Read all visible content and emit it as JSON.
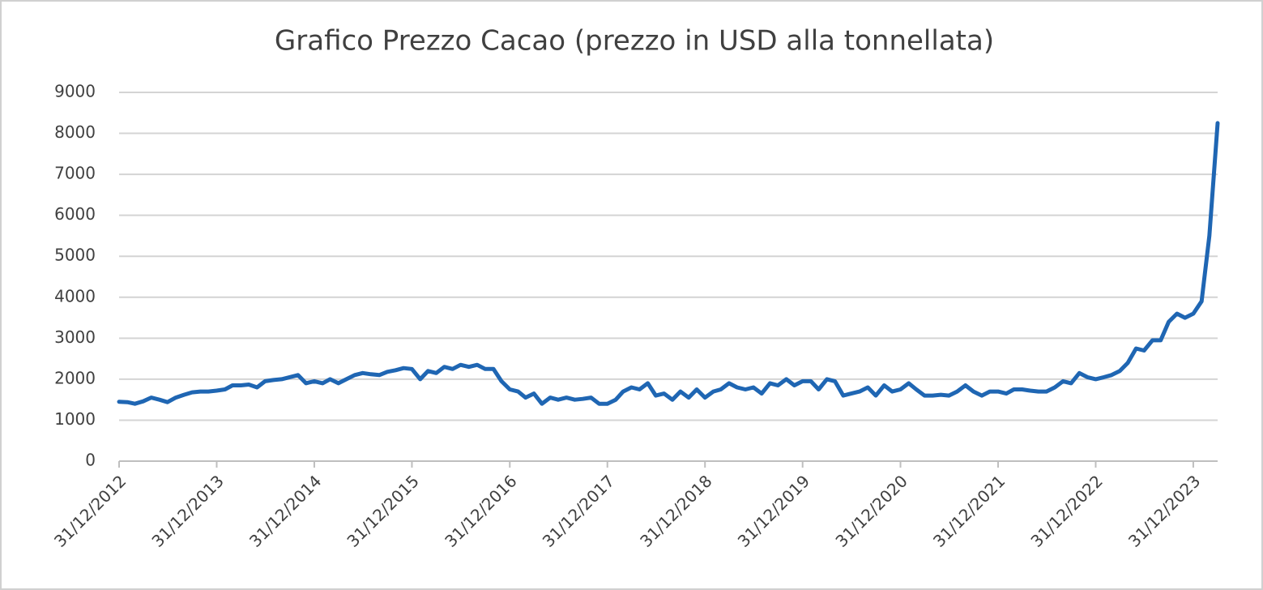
{
  "chart_data": {
    "type": "line",
    "title": "Grafico Prezzo Cacao (prezzo in USD alla tonnellata)",
    "color": "#1f66b3",
    "grid": true,
    "ylim": [
      0,
      9000
    ],
    "yticks": [
      0,
      1000,
      2000,
      3000,
      4000,
      5000,
      6000,
      7000,
      8000,
      9000
    ],
    "xlim": [
      "31/12/2012",
      "31/03/2024"
    ],
    "xticks": [
      "31/12/2012",
      "31/12/2013",
      "31/12/2014",
      "31/12/2015",
      "31/12/2016",
      "31/12/2017",
      "31/12/2018",
      "31/12/2019",
      "31/12/2020",
      "31/12/2021",
      "31/12/2022",
      "31/12/2023"
    ],
    "x": [
      "31/12/2012",
      "31/01/2013",
      "28/02/2013",
      "31/03/2013",
      "30/04/2013",
      "31/05/2013",
      "30/06/2013",
      "31/07/2013",
      "31/08/2013",
      "30/09/2013",
      "31/10/2013",
      "30/11/2013",
      "31/12/2013",
      "31/01/2014",
      "28/02/2014",
      "31/03/2014",
      "30/04/2014",
      "31/05/2014",
      "30/06/2014",
      "31/07/2014",
      "31/08/2014",
      "30/09/2014",
      "31/10/2014",
      "30/11/2014",
      "31/12/2014",
      "31/01/2015",
      "28/02/2015",
      "31/03/2015",
      "30/04/2015",
      "31/05/2015",
      "30/06/2015",
      "31/07/2015",
      "31/08/2015",
      "30/09/2015",
      "31/10/2015",
      "30/11/2015",
      "31/12/2015",
      "31/01/2016",
      "29/02/2016",
      "31/03/2016",
      "30/04/2016",
      "31/05/2016",
      "30/06/2016",
      "31/07/2016",
      "31/08/2016",
      "30/09/2016",
      "31/10/2016",
      "30/11/2016",
      "31/12/2016",
      "31/01/2017",
      "28/02/2017",
      "31/03/2017",
      "30/04/2017",
      "31/05/2017",
      "30/06/2017",
      "31/07/2017",
      "31/08/2017",
      "30/09/2017",
      "31/10/2017",
      "30/11/2017",
      "31/12/2017",
      "31/01/2018",
      "28/02/2018",
      "31/03/2018",
      "30/04/2018",
      "31/05/2018",
      "30/06/2018",
      "31/07/2018",
      "31/08/2018",
      "30/09/2018",
      "31/10/2018",
      "30/11/2018",
      "31/12/2018",
      "31/01/2019",
      "28/02/2019",
      "31/03/2019",
      "30/04/2019",
      "31/05/2019",
      "30/06/2019",
      "31/07/2019",
      "31/08/2019",
      "30/09/2019",
      "31/10/2019",
      "30/11/2019",
      "31/12/2019",
      "31/01/2020",
      "29/02/2020",
      "31/03/2020",
      "30/04/2020",
      "31/05/2020",
      "30/06/2020",
      "31/07/2020",
      "31/08/2020",
      "30/09/2020",
      "31/10/2020",
      "30/11/2020",
      "31/12/2020",
      "31/01/2021",
      "28/02/2021",
      "31/03/2021",
      "30/04/2021",
      "31/05/2021",
      "30/06/2021",
      "31/07/2021",
      "31/08/2021",
      "30/09/2021",
      "31/10/2021",
      "30/11/2021",
      "31/12/2021",
      "31/01/2022",
      "28/02/2022",
      "31/03/2022",
      "30/04/2022",
      "31/05/2022",
      "30/06/2022",
      "31/07/2022",
      "31/08/2022",
      "30/09/2022",
      "31/10/2022",
      "30/11/2022",
      "31/12/2022",
      "31/01/2023",
      "28/02/2023",
      "31/03/2023",
      "30/04/2023",
      "31/05/2023",
      "30/06/2023",
      "31/07/2023",
      "31/08/2023",
      "30/09/2023",
      "31/10/2023",
      "30/11/2023",
      "31/12/2023",
      "31/01/2024",
      "29/02/2024",
      "31/03/2024"
    ],
    "values": [
      1450,
      1440,
      1400,
      1460,
      1550,
      1500,
      1440,
      1550,
      1620,
      1680,
      1700,
      1700,
      1720,
      1750,
      1850,
      1850,
      1870,
      1800,
      1950,
      1980,
      2000,
      2050,
      2100,
      1900,
      1950,
      1900,
      2000,
      1900,
      2000,
      2100,
      2150,
      2120,
      2100,
      2180,
      2220,
      2270,
      2250,
      2000,
      2200,
      2150,
      2300,
      2250,
      2350,
      2300,
      2350,
      2250,
      2250,
      1950,
      1750,
      1700,
      1550,
      1650,
      1400,
      1550,
      1500,
      1550,
      1500,
      1520,
      1550,
      1400,
      1400,
      1500,
      1700,
      1800,
      1750,
      1900,
      1600,
      1650,
      1500,
      1700,
      1550,
      1750,
      1550,
      1700,
      1750,
      1900,
      1800,
      1750,
      1800,
      1650,
      1900,
      1850,
      2000,
      1850,
      1950,
      1950,
      1750,
      2000,
      1950,
      1600,
      1650,
      1700,
      1800,
      1600,
      1850,
      1700,
      1750,
      1900,
      1750,
      1600,
      1600,
      1620,
      1600,
      1700,
      1850,
      1700,
      1600,
      1700,
      1700,
      1650,
      1750,
      1750,
      1720,
      1700,
      1700,
      1800,
      1950,
      1900,
      2150,
      2050,
      2000,
      2050,
      2100,
      2200,
      2400,
      2750,
      2700,
      2950,
      2950,
      3400,
      3600,
      3500,
      3600,
      3900,
      5500,
      8250
    ]
  }
}
